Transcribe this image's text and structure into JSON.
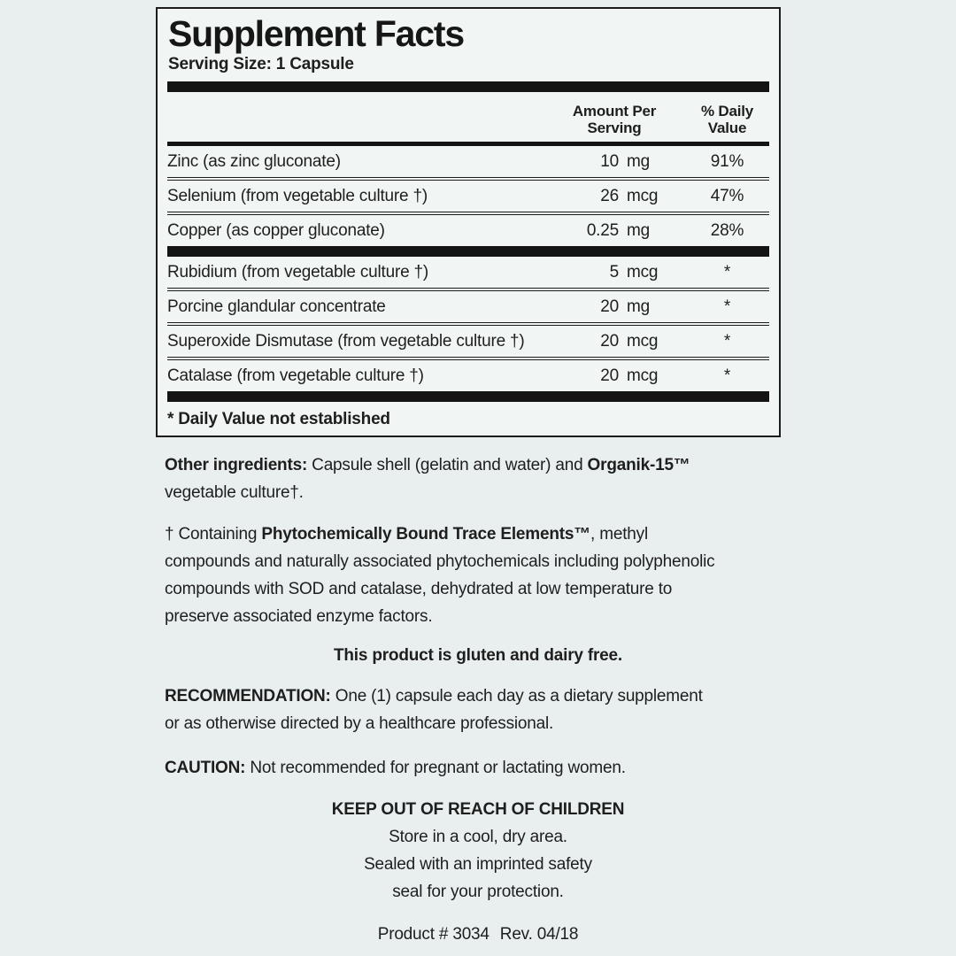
{
  "panel": {
    "title": "Supplement Facts",
    "serving_size": "Serving Size: 1 Capsule",
    "header": {
      "amount": "Amount Per\nServing",
      "daily_value": "% Daily\nValue"
    },
    "rows": [
      {
        "name": "Zinc (as zinc gluconate)",
        "amount_value": "10",
        "amount_unit": "mg",
        "daily_value": "91%"
      },
      {
        "name": "Selenium (from vegetable culture †)",
        "amount_value": "26",
        "amount_unit": "mcg",
        "daily_value": "47%"
      },
      {
        "name": "Copper (as copper gluconate)",
        "amount_value": "0.25",
        "amount_unit": "mg",
        "daily_value": "28%"
      },
      {
        "name": "Rubidium (from vegetable culture †)",
        "amount_value": "5",
        "amount_unit": "mcg",
        "daily_value": "*"
      },
      {
        "name": "Porcine glandular concentrate",
        "amount_value": "20",
        "amount_unit": "mg",
        "daily_value": "*"
      },
      {
        "name": "Superoxide Dismutase (from vegetable culture †)",
        "amount_value": "20",
        "amount_unit": "mcg",
        "daily_value": "*"
      },
      {
        "name": "Catalase (from vegetable culture †)",
        "amount_value": "20",
        "amount_unit": "mcg",
        "daily_value": "*"
      }
    ],
    "footnote": "* Daily Value not established"
  },
  "other_ingredients": {
    "label": "Other ingredients:",
    "text1": " Capsule shell (gelatin and water) and ",
    "brand": "Organik-15™",
    "text2": "vegetable culture†."
  },
  "containing_note": {
    "prefix": "† Containing ",
    "bold": "Phytochemically Bound Trace Elements™",
    "line1_rest": ", methyl",
    "line2": "compounds and naturally associated phytochemicals including polyphenolic",
    "line3": "compounds with SOD and catalase, dehydrated at low temperature to",
    "line4": "preserve associated enzyme factors."
  },
  "gluten_dairy": "This product is gluten and dairy free.",
  "recommendation": {
    "label": "RECOMMENDATION:",
    "line1": " One (1) capsule each day as a dietary supplement",
    "line2": "or as otherwise directed by a healthcare professional."
  },
  "caution": {
    "label": "CAUTION:",
    "text": " Not recommended for pregnant or lactating women."
  },
  "storage": {
    "heading": "KEEP OUT OF REACH OF CHILDREN",
    "lines": [
      "Store in a cool, dry area.",
      "Sealed with an imprinted safety",
      "seal for your protection."
    ]
  },
  "footer": {
    "product": "Product # 3034",
    "revision": "Rev. 04/18"
  },
  "colors": {
    "page_background": "#e9efef",
    "panel_background": "#f1f5f4",
    "text": "#1e1e1e",
    "rule": "#141414"
  }
}
